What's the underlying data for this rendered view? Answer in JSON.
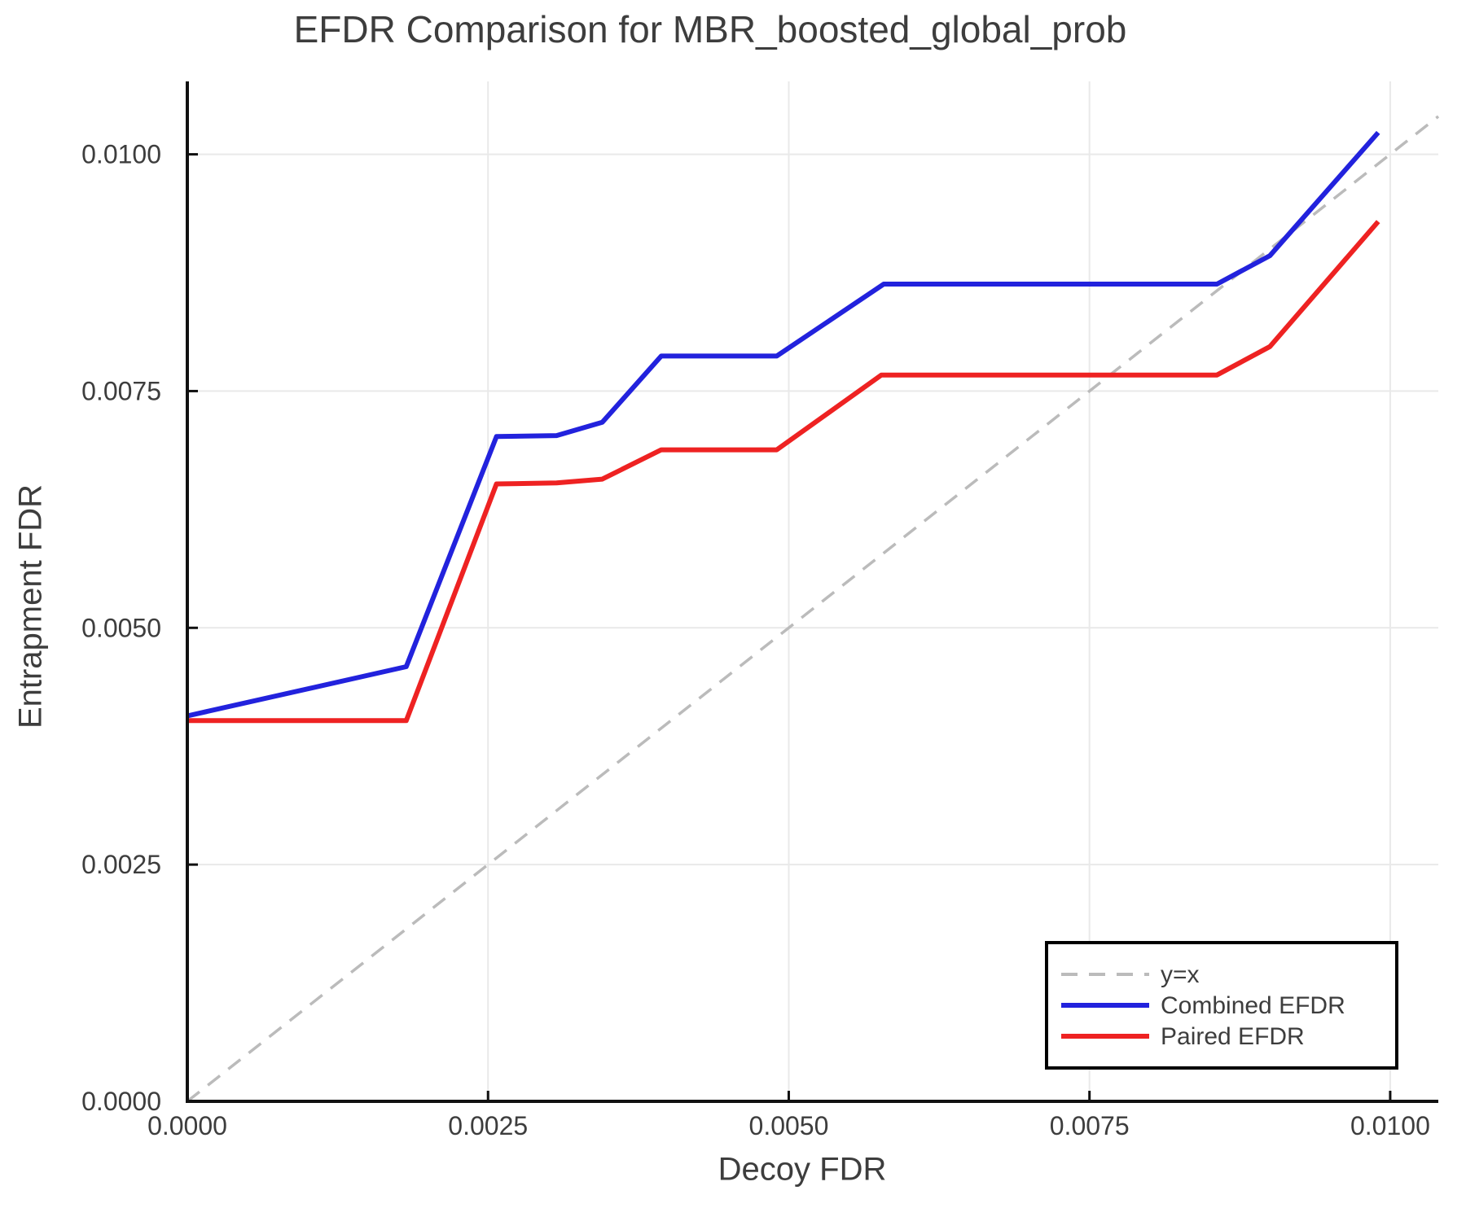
{
  "chart_data": {
    "type": "line",
    "title": "EFDR Comparison for MBR_boosted_global_prob",
    "xlabel": "Decoy FDR",
    "ylabel": "Entrapment FDR",
    "xlim": [
      0,
      0.0104
    ],
    "ylim": [
      0,
      0.01077
    ],
    "grid": true,
    "legend_position": "lower right",
    "x_ticks": [
      {
        "value": 0.0,
        "label": "0.0000"
      },
      {
        "value": 0.0025,
        "label": "0.0025"
      },
      {
        "value": 0.005,
        "label": "0.0050"
      },
      {
        "value": 0.0075,
        "label": "0.0075"
      },
      {
        "value": 0.01,
        "label": "0.0100"
      }
    ],
    "y_ticks": [
      {
        "value": 0.0,
        "label": "0.0000"
      },
      {
        "value": 0.0025,
        "label": "0.0025"
      },
      {
        "value": 0.005,
        "label": "0.0050"
      },
      {
        "value": 0.0075,
        "label": "0.0075"
      },
      {
        "value": 0.01,
        "label": "0.0100"
      }
    ],
    "series": [
      {
        "name": "y=x",
        "style": "dashed",
        "color": "#bbbbbb",
        "width": 3.5,
        "x": [
          0,
          0.0104
        ],
        "y": [
          0,
          0.0104
        ]
      },
      {
        "name": "Combined EFDR",
        "style": "solid",
        "color": "#2222dd",
        "width": 6,
        "x": [
          0.0,
          0.00182,
          0.00257,
          0.00307,
          0.00345,
          0.00394,
          0.0049,
          0.00579,
          0.00856,
          0.009,
          0.0099
        ],
        "y": [
          0.00407,
          0.00459,
          0.00702,
          0.00703,
          0.00717,
          0.00787,
          0.00787,
          0.00863,
          0.00863,
          0.00893,
          0.01023
        ]
      },
      {
        "name": "Paired EFDR",
        "style": "solid",
        "color": "#ee2222",
        "width": 6,
        "x": [
          0.0,
          0.00182,
          0.00257,
          0.00307,
          0.00345,
          0.00394,
          0.0049,
          0.00577,
          0.00856,
          0.009,
          0.0099
        ],
        "y": [
          0.00402,
          0.00402,
          0.00652,
          0.00653,
          0.00657,
          0.00688,
          0.00688,
          0.00767,
          0.00767,
          0.00797,
          0.00929
        ]
      }
    ],
    "colors": {
      "grid": "#e9e9e9",
      "spine": "#111111",
      "tick_text": "#3d3d3d",
      "title_text": "#3d3d3d",
      "legend_border": "#000000",
      "legend_background": "#ffffff"
    }
  }
}
